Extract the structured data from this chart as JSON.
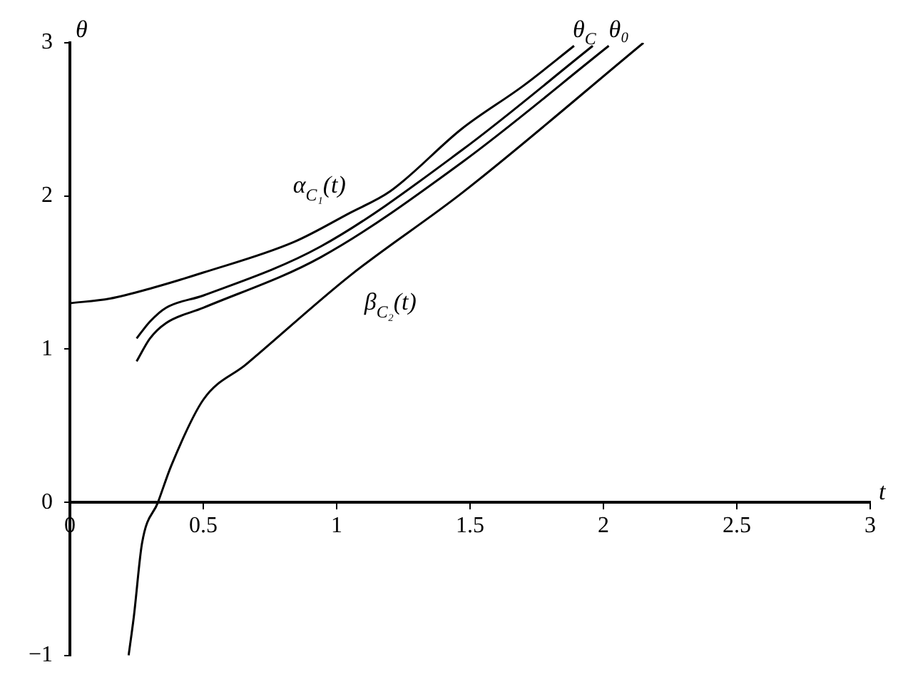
{
  "chart_data": {
    "type": "line",
    "xlabel": "t",
    "ylabel": "θ",
    "xlim": [
      0,
      3
    ],
    "ylim": [
      -1,
      3
    ],
    "xticks": [
      0,
      0.5,
      1,
      1.5,
      2,
      2.5,
      3
    ],
    "yticks": [
      -1,
      0,
      1,
      2,
      3
    ],
    "grid": false,
    "legend": false,
    "marker": "none",
    "line_style": "solid",
    "series": [
      {
        "name": "α$_{C₁}$(t)",
        "color": "#000000",
        "x": [
          0,
          0.15,
          0.31,
          0.5,
          0.84,
          1.05,
          1.2,
          1.47,
          1.7,
          1.89
        ],
        "values": [
          1.3,
          1.33,
          1.4,
          1.5,
          1.7,
          1.89,
          2.03,
          2.44,
          2.72,
          2.98
        ]
      },
      {
        "name": "θ$_{C}$",
        "color": "#000000",
        "x": [
          0.25,
          0.3,
          0.36,
          0.5,
          0.94,
          1.47,
          1.96
        ],
        "values": [
          1.07,
          1.18,
          1.27,
          1.35,
          1.67,
          2.3,
          2.98
        ]
      },
      {
        "name": "θ₀",
        "color": "#000000",
        "x": [
          0.25,
          0.3,
          0.36,
          0.5,
          0.94,
          1.47,
          2.02
        ],
        "values": [
          0.92,
          1.07,
          1.17,
          1.27,
          1.6,
          2.22,
          2.98
        ]
      },
      {
        "name": "β$_{C₂}$(t)",
        "color": "#000000",
        "x": [
          0.22,
          0.24,
          0.27,
          0.33,
          0.38,
          0.5,
          0.66,
          1.05,
          1.47,
          2.15
        ],
        "values": [
          -1.0,
          -0.74,
          -0.27,
          0,
          0.24,
          0.67,
          0.9,
          1.48,
          2.02,
          3.0
        ]
      }
    ]
  }
}
